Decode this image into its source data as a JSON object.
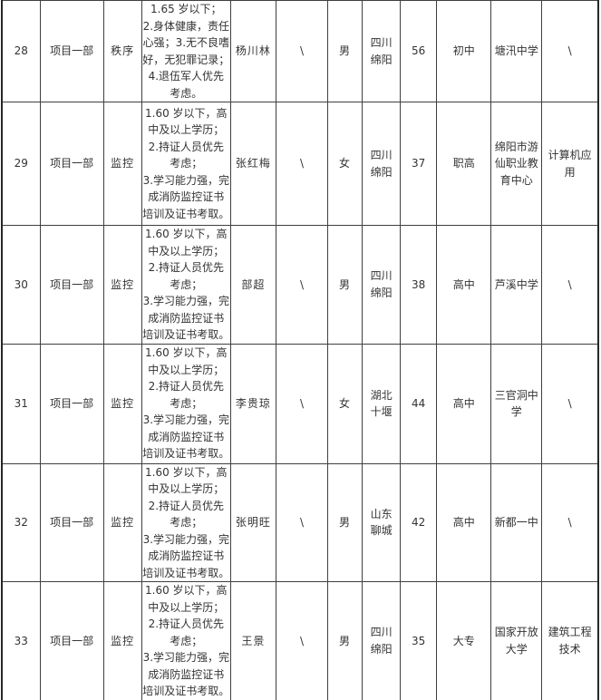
{
  "table": {
    "rows": [
      [
        "28",
        "项目一部",
        "秩序",
        "1.65 岁以下；\n2.身体健康，责任\n心强；3.无不良嗜\n好，无犯罪记录；\n4.退伍军人优先\n考虑。",
        "杨川林",
        "\\",
        "男",
        "四川\n绵阳",
        "56",
        "初中",
        "塘汛中学",
        "\\"
      ],
      [
        "29",
        "项目一部",
        "监控",
        "1.60 岁以下，高\n中及以上学历；\n2.持证人员优先\n考虑；\n3.学习能力强，完\n成消防监控证书\n培训及证书考取。",
        "张红梅",
        "\\",
        "女",
        "四川\n绵阳",
        "37",
        "职高",
        "绵阳市游\n仙职业教\n育中心",
        "计算机应\n用"
      ],
      [
        "30",
        "项目一部",
        "监控",
        "1.60 岁以下，高\n中及以上学历；\n2.持证人员优先\n考虑；\n3.学习能力强，完\n成消防监控证书\n培训及证书考取。",
        "部超",
        "\\",
        "男",
        "四川\n绵阳",
        "38",
        "高中",
        "芦溪中学",
        "\\"
      ],
      [
        "31",
        "项目一部",
        "监控",
        "1.60 岁以下，高\n中及以上学历；\n2.持证人员优先\n考虑；\n3.学习能力强，完\n成消防监控证书\n培训及证书考取。",
        "李贵琼",
        "\\",
        "女",
        "湖北\n十堰",
        "44",
        "高中",
        "三官洞中\n学",
        "\\"
      ],
      [
        "32",
        "项目一部",
        "监控",
        "1.60 岁以下，高\n中及以上学历；\n2.持证人员优先\n考虑；\n3.学习能力强，完\n成消防监控证书\n培训及证书考取。",
        "张明旺",
        "\\",
        "男",
        "山东\n聊城",
        "42",
        "高中",
        "新都一中",
        "\\"
      ],
      [
        "33",
        "项目一部",
        "监控",
        "1.60 岁以下，高\n中及以上学历；\n2.持证人员优先\n考虑；\n3.学习能力强，完\n成消防监控证书\n培训及证书考取。",
        "王景",
        "\\",
        "男",
        "四川\n绵阳",
        "35",
        "大专",
        "国家开放\n大学",
        "建筑工程\n技术"
      ]
    ],
    "colors": {
      "grid_line": "#3f3f3f",
      "outer_border": "#262626",
      "text": "#333333",
      "background": "#ffffff"
    }
  }
}
